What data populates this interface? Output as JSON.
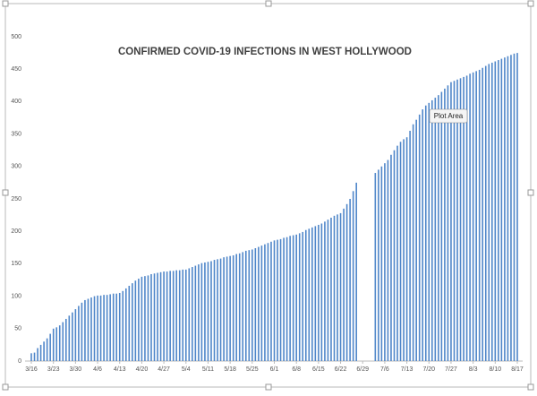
{
  "chart_data": {
    "type": "bar",
    "title": "CONFIRMED COVID-19 INFECTIONS IN WEST HOLLYWOOD",
    "annotation": "Plot Area",
    "categories": [
      "3/16",
      null,
      null,
      null,
      null,
      null,
      null,
      "3/23",
      null,
      null,
      null,
      null,
      null,
      null,
      "3/30",
      null,
      null,
      null,
      null,
      null,
      null,
      "4/6",
      null,
      null,
      null,
      null,
      null,
      null,
      "4/13",
      null,
      null,
      null,
      null,
      null,
      null,
      "4/20",
      null,
      null,
      null,
      null,
      null,
      null,
      "4/27",
      null,
      null,
      null,
      null,
      null,
      null,
      "5/4",
      null,
      null,
      null,
      null,
      null,
      null,
      "5/11",
      null,
      null,
      null,
      null,
      null,
      null,
      "5/18",
      null,
      null,
      null,
      null,
      null,
      null,
      "5/25",
      null,
      null,
      null,
      null,
      null,
      null,
      "6/1",
      null,
      null,
      null,
      null,
      null,
      null,
      "6/8",
      null,
      null,
      null,
      null,
      null,
      null,
      "6/15",
      null,
      null,
      null,
      null,
      null,
      null,
      "6/22",
      null,
      null,
      null,
      null,
      null,
      null,
      "6/29",
      null,
      null,
      null,
      null,
      null,
      null,
      "7/6",
      null,
      null,
      null,
      null,
      null,
      null,
      "7/13",
      null,
      null,
      null,
      null,
      null,
      null,
      "7/20",
      null,
      null,
      null,
      null,
      null,
      null,
      "7/27",
      null,
      null,
      null,
      null,
      null,
      null,
      "8/3",
      null,
      null,
      null,
      null,
      null,
      null,
      "8/10",
      null,
      null,
      null,
      null,
      null,
      null,
      "8/17"
    ],
    "values": [
      12,
      13,
      20,
      25,
      30,
      35,
      42,
      50,
      52,
      55,
      60,
      65,
      70,
      75,
      80,
      85,
      90,
      94,
      96,
      98,
      100,
      101,
      101,
      102,
      102,
      103,
      104,
      104,
      105,
      108,
      112,
      116,
      120,
      124,
      127,
      130,
      131,
      132,
      134,
      135,
      136,
      137,
      138,
      138,
      139,
      139,
      140,
      140,
      141,
      141,
      143,
      145,
      147,
      149,
      151,
      152,
      153,
      154,
      156,
      157,
      158,
      160,
      161,
      162,
      163,
      165,
      166,
      168,
      170,
      171,
      172,
      174,
      176,
      178,
      180,
      182,
      184,
      186,
      187,
      188,
      190,
      191,
      193,
      194,
      195,
      197,
      199,
      202,
      204,
      206,
      208,
      210,
      212,
      215,
      218,
      221,
      224,
      226,
      228,
      235,
      242,
      250,
      262,
      275,
      null,
      null,
      null,
      null,
      null,
      290,
      295,
      300,
      305,
      310,
      318,
      325,
      332,
      338,
      342,
      345,
      355,
      365,
      372,
      380,
      388,
      394,
      398,
      402,
      406,
      410,
      415,
      420,
      425,
      430,
      432,
      434,
      436,
      438,
      440,
      443,
      445,
      447,
      449,
      452,
      455,
      458,
      460,
      462,
      464,
      466,
      468,
      470,
      472,
      474,
      475
    ],
    "color": "#4f86c9",
    "ylim": [
      0,
      500
    ],
    "yticks": [
      0,
      50,
      100,
      150,
      200,
      250,
      300,
      350,
      400,
      450,
      500
    ],
    "grid": false
  }
}
